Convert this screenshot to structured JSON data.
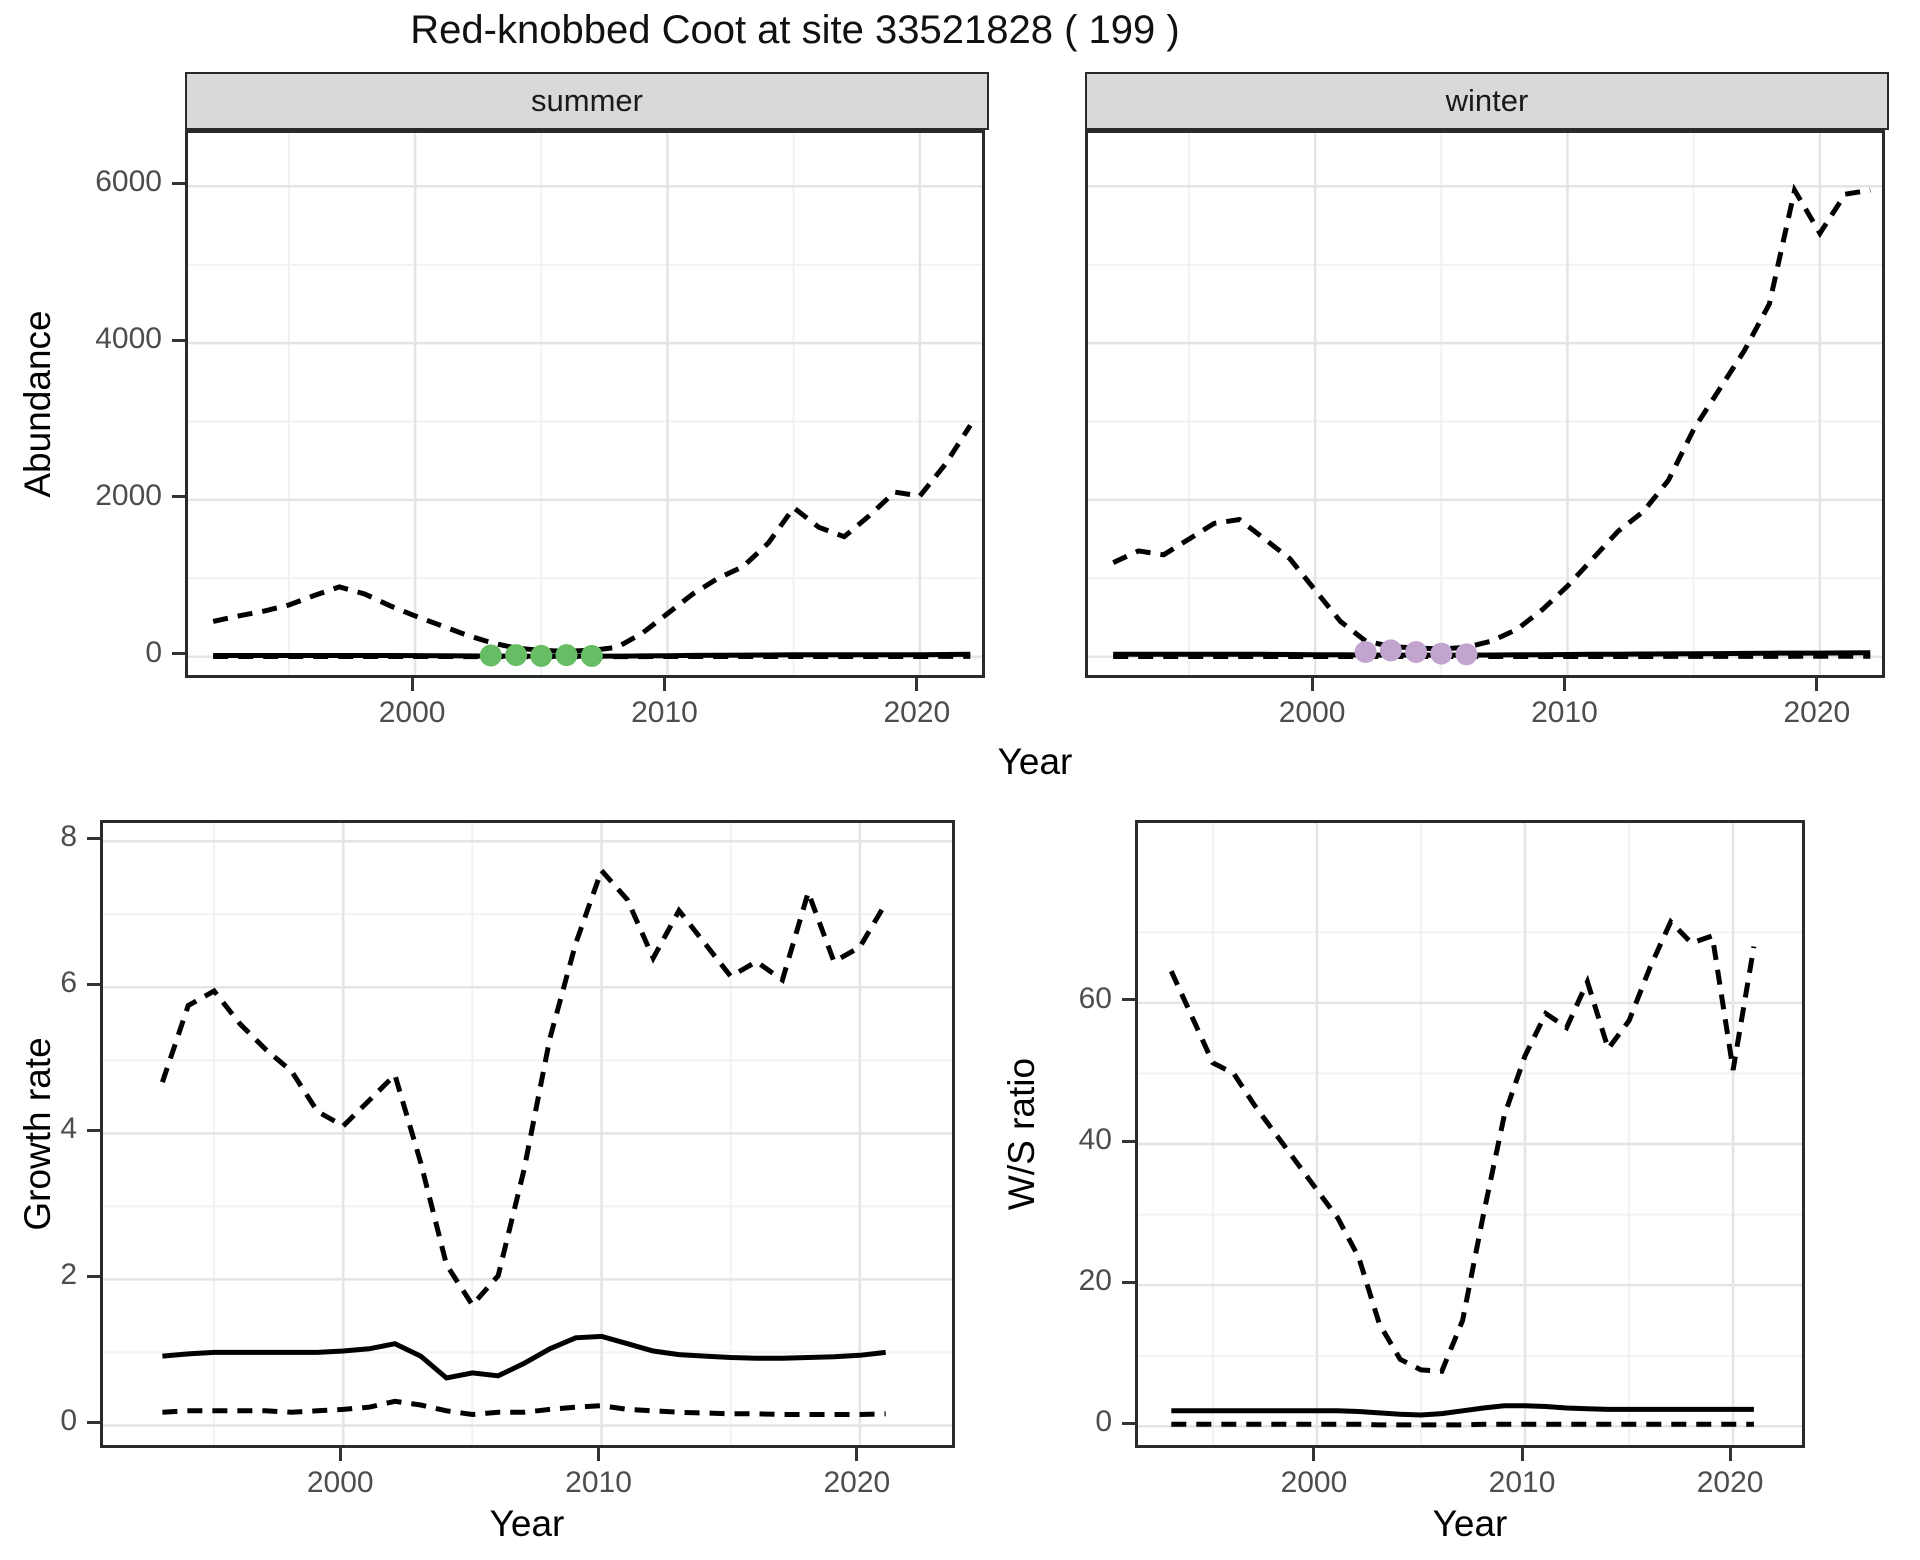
{
  "title": "Red-knobbed Coot at site 33521828 ( 199 )",
  "axis_titles": {
    "abundance_y": "Abundance",
    "abundance_x": "Year",
    "growth_y": "Growth rate",
    "growth_x": "Year",
    "ws_y": "W/S ratio",
    "ws_x": "Year"
  },
  "facet_labels": {
    "summer": "summer",
    "winter": "winter"
  },
  "colors": {
    "line": "#000000",
    "summer_dot": "#66bd63",
    "winter_dot": "#c2a5cf",
    "grid_major": "#e4e4e4",
    "grid_minor": "#f2f2f2",
    "strip_bg": "#d9d9d9",
    "panel_border": "#2a2a2a",
    "tick_text": "#4d4d4d"
  },
  "chart_data": [
    {
      "id": "abundance_summer",
      "type": "line",
      "facet": "summer",
      "title": "Red-knobbed Coot abundance, summer facet",
      "xlabel": "Year",
      "ylabel": "Abundance",
      "x_range": [
        1991,
        2022.7
      ],
      "y_range": [
        -310,
        6680
      ],
      "x_ticks": [
        2000,
        2010,
        2020
      ],
      "x_minor": [
        1995,
        2005,
        2015
      ],
      "y_ticks": [
        0,
        2000,
        4000,
        6000
      ],
      "y_minor": [
        1000,
        3000,
        5000
      ],
      "show_y_labels": true,
      "series": [
        {
          "name": "upper_ci",
          "style": "dashed",
          "years": [
            1992,
            1993,
            1994,
            1995,
            1996,
            1997,
            1998,
            1999,
            2000,
            2001,
            2002,
            2003,
            2004,
            2005,
            2006,
            2007,
            2008,
            2009,
            2010,
            2011,
            2012,
            2013,
            2014,
            2015,
            2016,
            2017,
            2018,
            2019,
            2020,
            2021,
            2022
          ],
          "values": [
            450,
            520,
            580,
            660,
            780,
            890,
            800,
            650,
            520,
            400,
            280,
            180,
            110,
            80,
            70,
            80,
            120,
            300,
            550,
            800,
            1000,
            1150,
            1450,
            1900,
            1650,
            1530,
            1800,
            2100,
            2050,
            2450,
            2950
          ]
        },
        {
          "name": "lower_ci",
          "style": "dashed",
          "years": [
            1992,
            1993,
            1994,
            1995,
            1996,
            1997,
            1998,
            1999,
            2000,
            2001,
            2002,
            2003,
            2004,
            2005,
            2006,
            2007,
            2008,
            2009,
            2010,
            2011,
            2012,
            2013,
            2014,
            2015,
            2016,
            2017,
            2018,
            2019,
            2020,
            2021,
            2022
          ],
          "values": [
            2,
            2,
            2,
            2,
            2,
            2,
            2,
            2,
            2,
            2,
            1,
            1,
            1,
            1,
            1,
            1,
            1,
            1,
            2,
            2,
            2,
            3,
            3,
            3,
            3,
            3,
            3,
            3,
            3,
            4,
            4
          ]
        },
        {
          "name": "fit",
          "style": "solid",
          "years": [
            1992,
            1993,
            1994,
            1995,
            1996,
            1997,
            1998,
            1999,
            2000,
            2001,
            2002,
            2003,
            2004,
            2005,
            2006,
            2007,
            2008,
            2009,
            2010,
            2011,
            2012,
            2013,
            2014,
            2015,
            2016,
            2017,
            2018,
            2019,
            2020,
            2021,
            2022
          ],
          "values": [
            15,
            15,
            15,
            15,
            15,
            15,
            15,
            15,
            14,
            12,
            10,
            8,
            7,
            6,
            6,
            7,
            8,
            10,
            13,
            16,
            18,
            20,
            22,
            24,
            25,
            25,
            26,
            26,
            26,
            28,
            30
          ]
        },
        {
          "name": "observations",
          "style": "points",
          "color_key": "summer_dot",
          "years": [
            2003,
            2004,
            2005,
            2006,
            2007
          ],
          "values": [
            15,
            20,
            10,
            20,
            10
          ]
        }
      ]
    },
    {
      "id": "abundance_winter",
      "type": "line",
      "facet": "winter",
      "title": "Red-knobbed Coot abundance, winter facet",
      "xlabel": "Year",
      "ylabel": "Abundance",
      "x_range": [
        1991,
        2022.7
      ],
      "y_range": [
        -310,
        6680
      ],
      "x_ticks": [
        2000,
        2010,
        2020
      ],
      "x_minor": [
        1995,
        2005,
        2015
      ],
      "y_ticks": [
        0,
        2000,
        4000,
        6000
      ],
      "y_minor": [
        1000,
        3000,
        5000
      ],
      "show_y_labels": false,
      "series": [
        {
          "name": "upper_ci",
          "style": "dashed",
          "years": [
            1992,
            1993,
            1994,
            1995,
            1996,
            1997,
            1998,
            1999,
            2000,
            2001,
            2002,
            2003,
            2004,
            2005,
            2006,
            2007,
            2008,
            2009,
            2010,
            2011,
            2012,
            2013,
            2014,
            2015,
            2016,
            2017,
            2018,
            2019,
            2020,
            2021,
            2022
          ],
          "values": [
            1200,
            1350,
            1300,
            1500,
            1700,
            1750,
            1500,
            1250,
            850,
            450,
            200,
            130,
            110,
            100,
            120,
            200,
            350,
            600,
            900,
            1250,
            1600,
            1850,
            2250,
            2900,
            3400,
            3900,
            4500,
            5950,
            5400,
            5900,
            5950
          ]
        },
        {
          "name": "lower_ci",
          "style": "dashed",
          "years": [
            1992,
            1993,
            1994,
            1995,
            1996,
            1997,
            1998,
            1999,
            2000,
            2001,
            2002,
            2003,
            2004,
            2005,
            2006,
            2007,
            2008,
            2009,
            2010,
            2011,
            2012,
            2013,
            2014,
            2015,
            2016,
            2017,
            2018,
            2019,
            2020,
            2021,
            2022
          ],
          "values": [
            3,
            3,
            3,
            3,
            3,
            3,
            3,
            3,
            3,
            2,
            2,
            2,
            2,
            2,
            2,
            2,
            2,
            2,
            3,
            3,
            3,
            3,
            4,
            4,
            4,
            4,
            4,
            5,
            5,
            5,
            5
          ]
        },
        {
          "name": "fit",
          "style": "solid",
          "years": [
            1992,
            1993,
            1994,
            1995,
            1996,
            1997,
            1998,
            1999,
            2000,
            2001,
            2002,
            2003,
            2004,
            2005,
            2006,
            2007,
            2008,
            2009,
            2010,
            2011,
            2012,
            2013,
            2014,
            2015,
            2016,
            2017,
            2018,
            2019,
            2020,
            2021,
            2022
          ],
          "values": [
            30,
            30,
            30,
            30,
            30,
            30,
            30,
            28,
            26,
            24,
            22,
            20,
            20,
            20,
            20,
            22,
            24,
            26,
            28,
            30,
            32,
            34,
            36,
            38,
            40,
            42,
            44,
            46,
            46,
            48,
            50
          ]
        },
        {
          "name": "observations",
          "style": "points",
          "color_key": "winter_dot",
          "years": [
            2002,
            2003,
            2004,
            2005,
            2006
          ],
          "values": [
            60,
            80,
            60,
            40,
            30
          ]
        }
      ]
    },
    {
      "id": "growth_rate",
      "type": "line",
      "facet": null,
      "title": "Growth rate",
      "xlabel": "Year",
      "ylabel": "Growth rate",
      "x_range": [
        1990.7,
        2023.8
      ],
      "y_range": [
        -0.35,
        8.25
      ],
      "x_ticks": [
        2000,
        2010,
        2020
      ],
      "x_minor": [
        1995,
        2005,
        2015
      ],
      "y_ticks": [
        0,
        2,
        4,
        6,
        8
      ],
      "y_minor": [
        1,
        3,
        5,
        7
      ],
      "show_y_labels": true,
      "series": [
        {
          "name": "upper_ci",
          "style": "dashed",
          "years": [
            1993,
            1994,
            1995,
            1996,
            1997,
            1998,
            1999,
            2000,
            2001,
            2002,
            2003,
            2004,
            2005,
            2006,
            2007,
            2008,
            2009,
            2010,
            2011,
            2012,
            2013,
            2014,
            2015,
            2016,
            2017,
            2018,
            2019,
            2020,
            2021
          ],
          "values": [
            4.7,
            5.75,
            5.95,
            5.5,
            5.15,
            4.85,
            4.3,
            4.1,
            4.45,
            4.8,
            3.6,
            2.2,
            1.65,
            2.05,
            3.5,
            5.3,
            6.6,
            7.6,
            7.2,
            6.4,
            7.05,
            6.6,
            6.15,
            6.35,
            6.1,
            7.3,
            6.35,
            6.55,
            7.15
          ]
        },
        {
          "name": "lower_ci",
          "style": "dashed",
          "years": [
            1993,
            1994,
            1995,
            1996,
            1997,
            1998,
            1999,
            2000,
            2001,
            2002,
            2003,
            2004,
            2005,
            2006,
            2007,
            2008,
            2009,
            2010,
            2011,
            2012,
            2013,
            2014,
            2015,
            2016,
            2017,
            2018,
            2019,
            2020,
            2021
          ],
          "values": [
            0.18,
            0.2,
            0.2,
            0.2,
            0.2,
            0.18,
            0.2,
            0.22,
            0.25,
            0.33,
            0.28,
            0.2,
            0.15,
            0.18,
            0.18,
            0.22,
            0.25,
            0.27,
            0.22,
            0.2,
            0.18,
            0.17,
            0.16,
            0.16,
            0.15,
            0.15,
            0.15,
            0.15,
            0.16
          ]
        },
        {
          "name": "fit",
          "style": "solid",
          "years": [
            1993,
            1994,
            1995,
            1996,
            1997,
            1998,
            1999,
            2000,
            2001,
            2002,
            2003,
            2004,
            2005,
            2006,
            2007,
            2008,
            2009,
            2010,
            2011,
            2012,
            2013,
            2014,
            2015,
            2016,
            2017,
            2018,
            2019,
            2020,
            2021
          ],
          "values": [
            0.95,
            0.98,
            1.0,
            1.0,
            1.0,
            1.0,
            1.0,
            1.02,
            1.05,
            1.12,
            0.95,
            0.65,
            0.72,
            0.68,
            0.85,
            1.05,
            1.2,
            1.22,
            1.12,
            1.02,
            0.97,
            0.95,
            0.93,
            0.92,
            0.92,
            0.93,
            0.94,
            0.96,
            1.0
          ]
        }
      ]
    },
    {
      "id": "ws_ratio",
      "type": "line",
      "facet": null,
      "title": "Winter/Summer ratio",
      "xlabel": "Year",
      "ylabel": "W/S ratio",
      "x_range": [
        1991.4,
        2023.6
      ],
      "y_range": [
        -3.5,
        85.5
      ],
      "x_ticks": [
        2000,
        2010,
        2020
      ],
      "x_minor": [
        1995,
        2005,
        2015
      ],
      "y_ticks": [
        0,
        20,
        40,
        60
      ],
      "y_minor": [
        10,
        30,
        50,
        70
      ],
      "show_y_labels": true,
      "series": [
        {
          "name": "upper_ci",
          "style": "dashed",
          "years": [
            1993,
            1994,
            1995,
            1996,
            1997,
            1998,
            1999,
            2000,
            2001,
            2002,
            2003,
            2004,
            2005,
            2006,
            2007,
            2008,
            2009,
            2010,
            2011,
            2012,
            2013,
            2014,
            2015,
            2016,
            2017,
            2018,
            2019,
            2020,
            2021
          ],
          "values": [
            64.5,
            58,
            51.5,
            50,
            45.5,
            41.5,
            37.5,
            33.5,
            29.5,
            24,
            14.5,
            9.5,
            8,
            7.8,
            15,
            30,
            44,
            52.5,
            58.5,
            56.5,
            63,
            53.5,
            57.5,
            65,
            71.5,
            68.5,
            69.5,
            50.5,
            68
          ]
        },
        {
          "name": "lower_ci",
          "style": "dashed",
          "years": [
            1993,
            1994,
            1995,
            1996,
            1997,
            1998,
            1999,
            2000,
            2001,
            2002,
            2003,
            2004,
            2005,
            2006,
            2007,
            2008,
            2009,
            2010,
            2011,
            2012,
            2013,
            2014,
            2015,
            2016,
            2017,
            2018,
            2019,
            2020,
            2021
          ],
          "values": [
            0.3,
            0.3,
            0.3,
            0.3,
            0.3,
            0.3,
            0.3,
            0.3,
            0.3,
            0.3,
            0.2,
            0.2,
            0.2,
            0.2,
            0.2,
            0.3,
            0.3,
            0.3,
            0.3,
            0.3,
            0.3,
            0.3,
            0.3,
            0.3,
            0.3,
            0.3,
            0.3,
            0.3,
            0.3
          ]
        },
        {
          "name": "fit",
          "style": "solid",
          "years": [
            1993,
            1994,
            1995,
            1996,
            1997,
            1998,
            1999,
            2000,
            2001,
            2002,
            2003,
            2004,
            2005,
            2006,
            2007,
            2008,
            2009,
            2010,
            2011,
            2012,
            2013,
            2014,
            2015,
            2016,
            2017,
            2018,
            2019,
            2020,
            2021
          ],
          "values": [
            2.2,
            2.2,
            2.2,
            2.2,
            2.2,
            2.2,
            2.2,
            2.2,
            2.2,
            2.1,
            1.9,
            1.7,
            1.6,
            1.8,
            2.2,
            2.6,
            2.9,
            2.9,
            2.8,
            2.6,
            2.5,
            2.4,
            2.4,
            2.4,
            2.4,
            2.4,
            2.4,
            2.4,
            2.4
          ]
        }
      ]
    }
  ]
}
